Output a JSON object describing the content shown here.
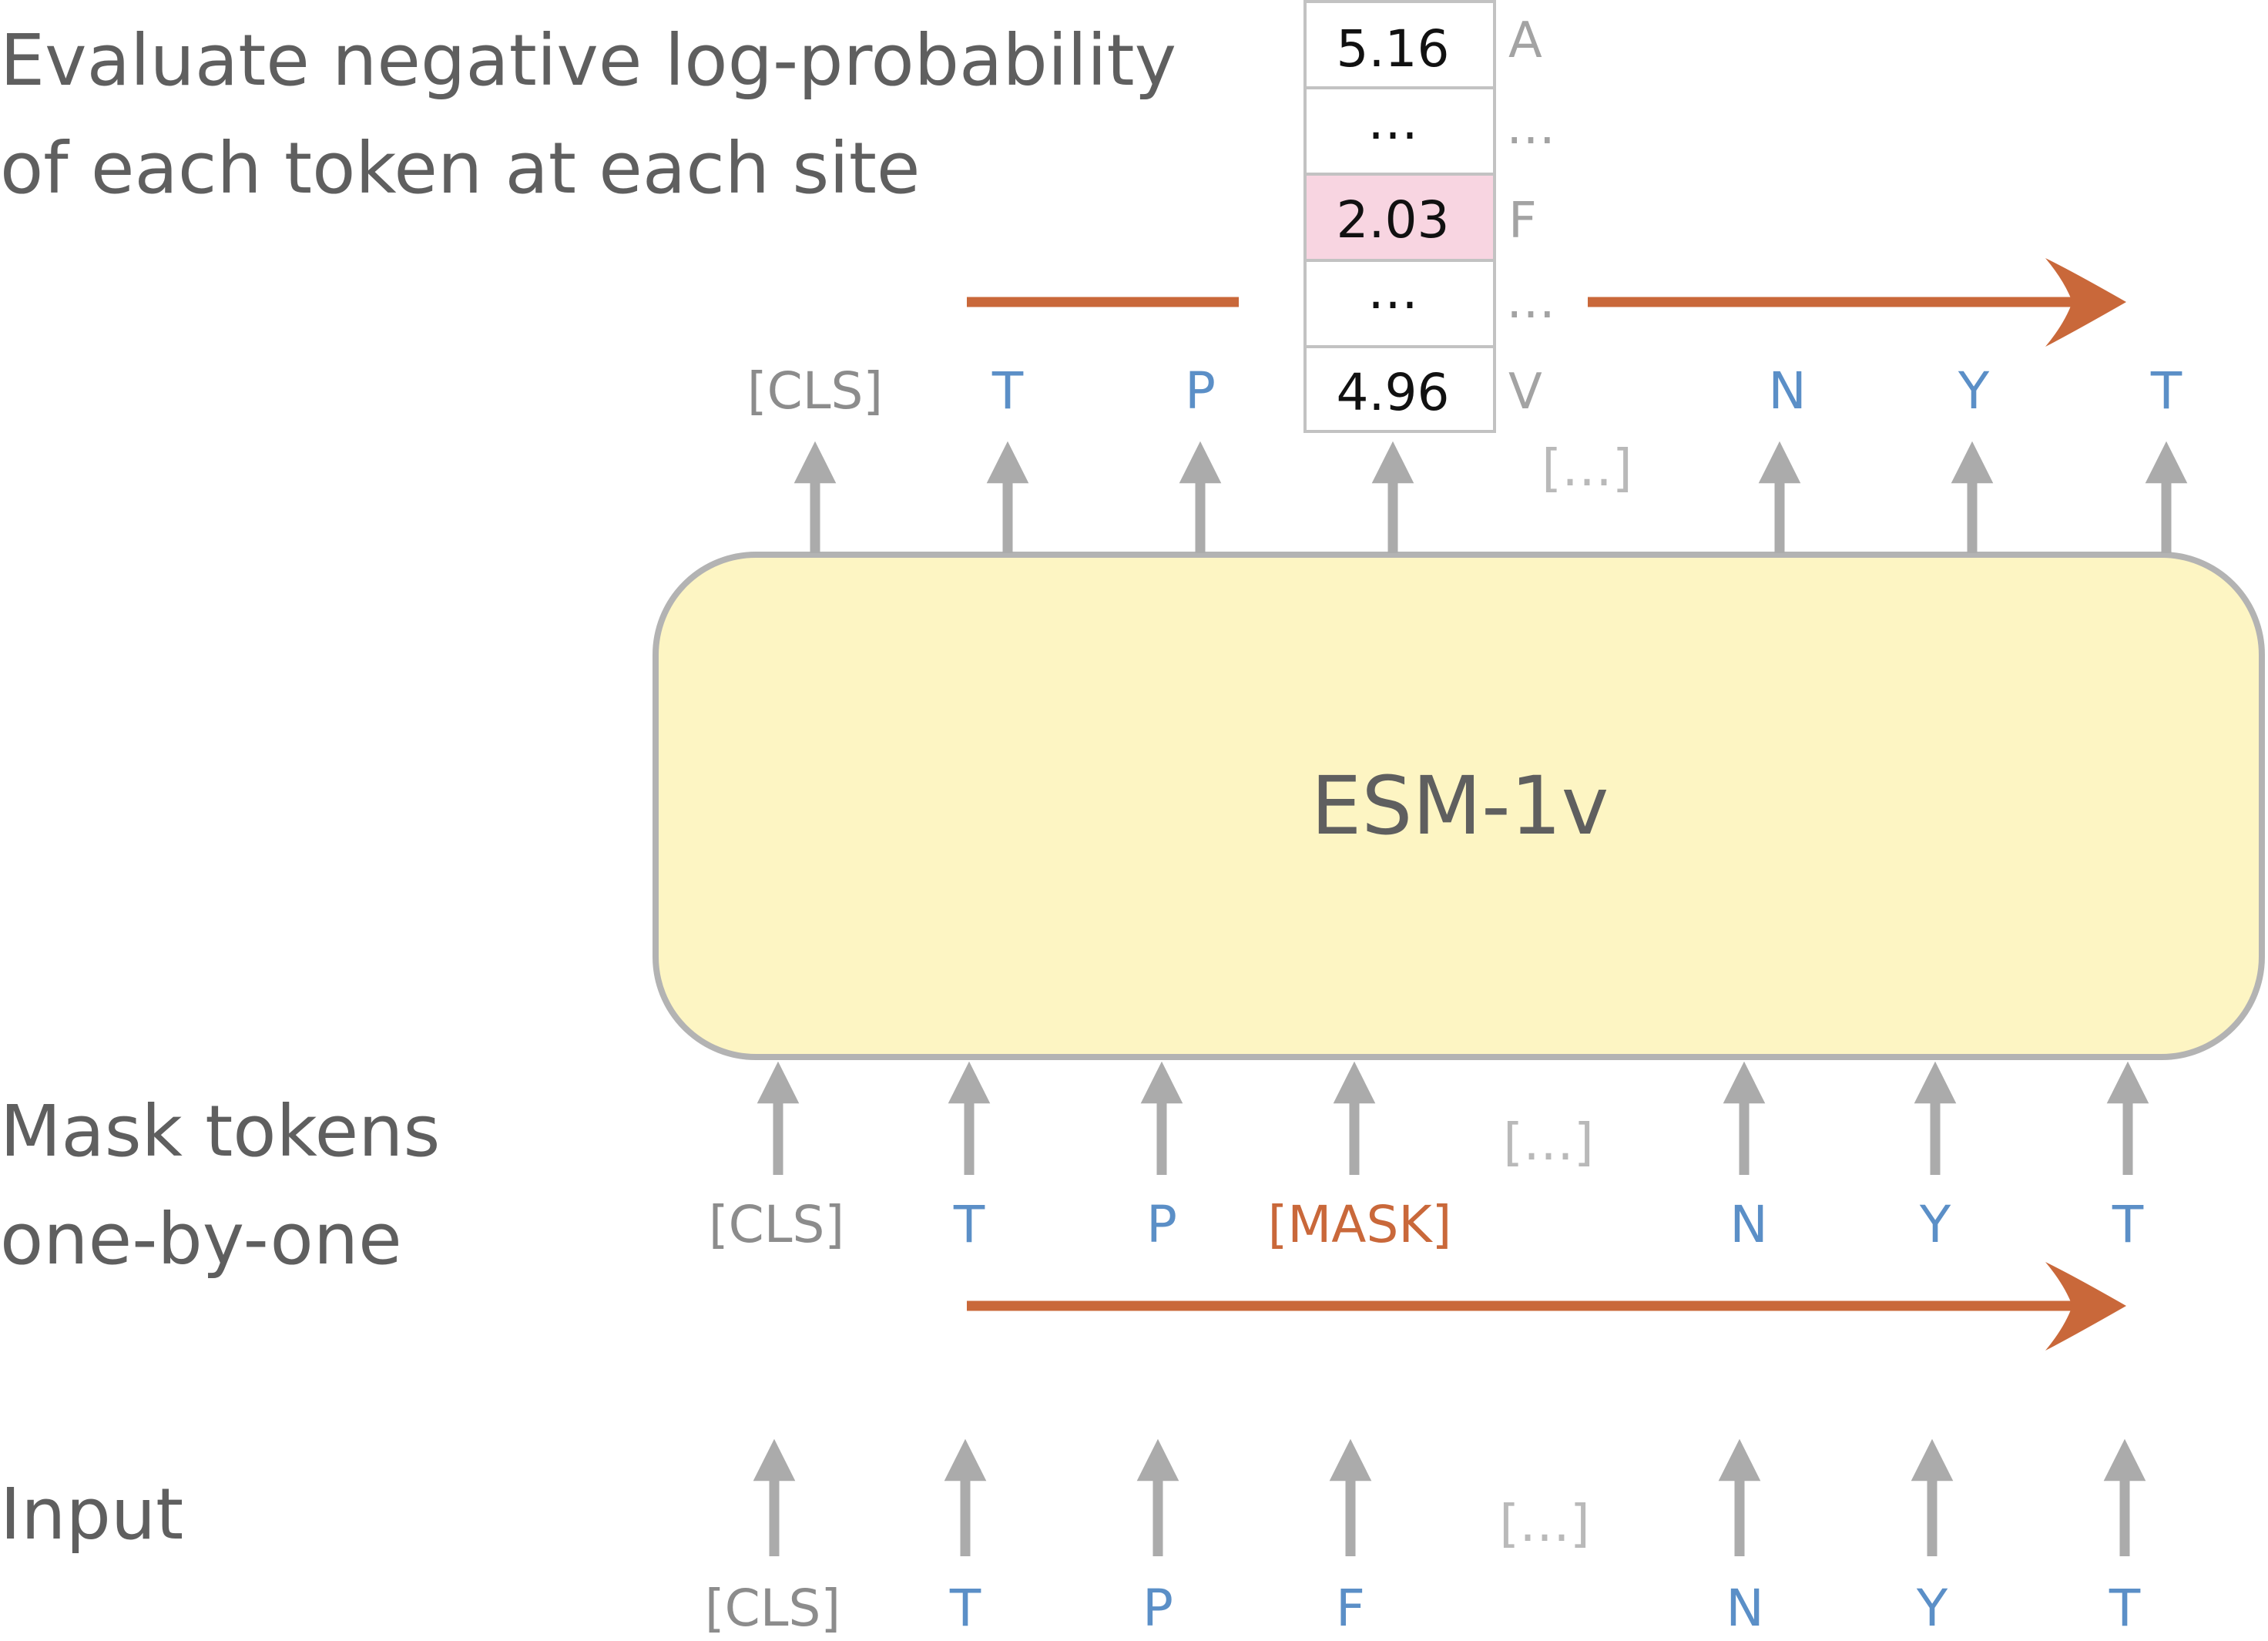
{
  "labels": {
    "evaluate_line1": "Evaluate negative log-probability",
    "evaluate_line2": "of each token at each site",
    "mask_line1": "Mask tokens",
    "mask_line2": "one-by-one",
    "input": "Input"
  },
  "model": {
    "name": "ESM-1v"
  },
  "output_tokens": [
    "[CLS]",
    "T",
    "P",
    "N",
    "Y",
    "T"
  ],
  "mask_tokens": [
    "[CLS]",
    "T",
    "P",
    "[MASK]",
    "N",
    "Y",
    "T"
  ],
  "input_tokens": [
    "[CLS]",
    "T",
    "P",
    "F",
    "N",
    "Y",
    "T"
  ],
  "ellipsis_token": "[…]",
  "logprob_table": {
    "rows": [
      {
        "value": "5.16",
        "label": "A",
        "highlight": false
      },
      {
        "value": "…",
        "label": "…",
        "highlight": false
      },
      {
        "value": "2.03",
        "label": "F",
        "highlight": true
      },
      {
        "value": "…",
        "label": "…",
        "highlight": false
      },
      {
        "value": "4.96",
        "label": "V",
        "highlight": false
      }
    ]
  },
  "colors": {
    "text_gray": "#5f5f5f",
    "token_gray": "#8c8c8c",
    "token_blue": "#5b8fc7",
    "accent_orange": "#c9683a",
    "arrow_gray": "#ababab",
    "model_fill": "#fdf5c3",
    "model_border": "#b3b3b3",
    "highlight_pink": "#f8d5e1"
  }
}
